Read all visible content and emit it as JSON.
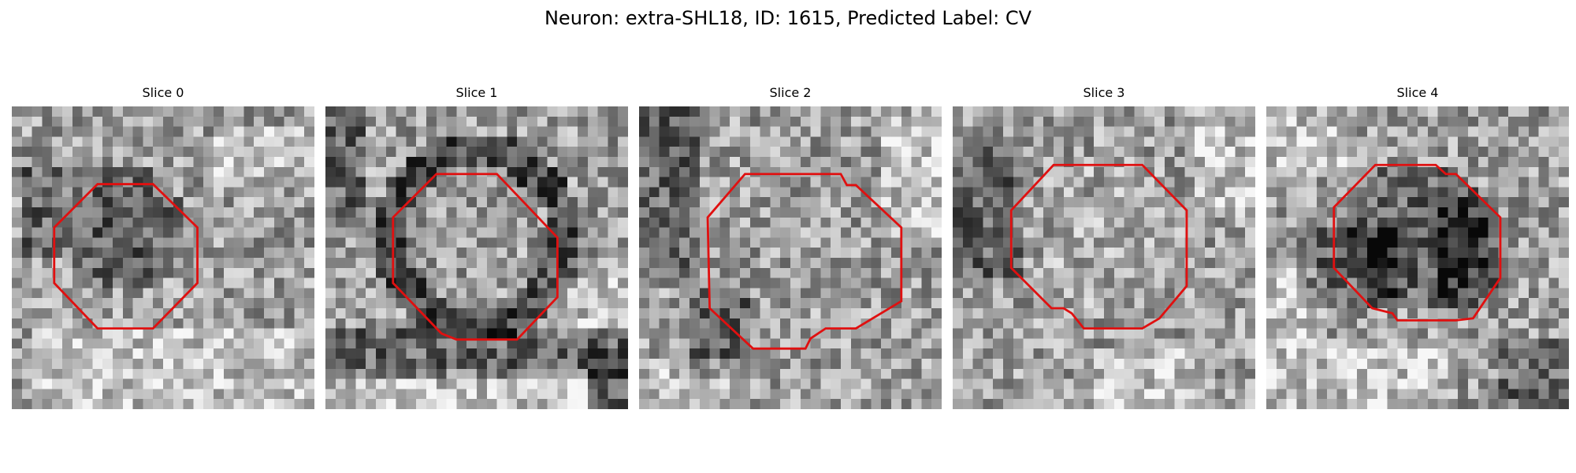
{
  "figure": {
    "title": "Neuron: extra-SHL18, ID: 1615, Predicted Label: CV",
    "grid_size": 30,
    "outline_color": "#e01010",
    "slices": [
      {
        "label": "Slice 0",
        "seed": 11,
        "center": [
          11,
          12
        ],
        "radius": 7.5,
        "ring": "dark-interior",
        "darken": [
          [
            1,
            6,
            4,
            14
          ],
          [
            0,
            18,
            4,
            6
          ]
        ],
        "lighten": [
          [
            2,
            22,
            28,
            29
          ],
          [
            20,
            2,
            29,
            6
          ]
        ],
        "outline": [
          [
            8.5,
            7.7
          ],
          [
            14,
            7.7
          ],
          [
            18.4,
            12
          ],
          [
            18.4,
            17.5
          ],
          [
            14,
            22
          ],
          [
            8.5,
            22
          ],
          [
            4.2,
            17.5
          ],
          [
            4.2,
            12
          ]
        ]
      },
      {
        "label": "Slice 1",
        "seed": 23,
        "center": [
          15,
          13
        ],
        "radius": 8.5,
        "ring": "dark-ring",
        "darken": [
          [
            0,
            22,
            29,
            26
          ],
          [
            0,
            0,
            3,
            10
          ],
          [
            26,
            24,
            29,
            29
          ]
        ],
        "lighten": [
          [
            0,
            26,
            25,
            29
          ],
          [
            22,
            16,
            29,
            22
          ]
        ],
        "outline": [
          [
            11,
            6.7
          ],
          [
            17,
            6.7
          ],
          [
            23,
            13
          ],
          [
            23,
            18.9
          ],
          [
            19,
            23.1
          ],
          [
            13,
            23.1
          ],
          [
            11.5,
            22.5
          ],
          [
            6.7,
            17.5
          ],
          [
            6.7,
            11
          ]
        ]
      },
      {
        "label": "Slice 2",
        "seed": 37,
        "center": [
          15,
          15
        ],
        "radius": 9,
        "ring": "neutral",
        "darken": [
          [
            0,
            0,
            5,
            16
          ],
          [
            5,
            18,
            10,
            26
          ]
        ],
        "lighten": [
          [
            24,
            1,
            29,
            12
          ],
          [
            0,
            25,
            10,
            29
          ]
        ],
        "outline": [
          [
            10.5,
            6.7
          ],
          [
            20,
            6.7
          ],
          [
            20.6,
            7.8
          ],
          [
            21.5,
            7.8
          ],
          [
            26,
            12
          ],
          [
            26,
            19.3
          ],
          [
            21.5,
            22
          ],
          [
            18.5,
            22
          ],
          [
            17,
            23
          ],
          [
            16.5,
            24
          ],
          [
            11.3,
            24
          ],
          [
            7,
            20
          ],
          [
            6.8,
            11
          ]
        ]
      },
      {
        "label": "Slice 3",
        "seed": 51,
        "center": [
          14,
          13
        ],
        "radius": 8.5,
        "ring": "light-interior",
        "darken": [
          [
            0,
            4,
            6,
            16
          ]
        ],
        "lighten": [
          [
            24,
            2,
            29,
            10
          ],
          [
            14,
            24,
            24,
            29
          ]
        ],
        "outline": [
          [
            10,
            5.8
          ],
          [
            18.8,
            5.8
          ],
          [
            23.2,
            10.3
          ],
          [
            23.2,
            17.8
          ],
          [
            20.5,
            21
          ],
          [
            18.8,
            22
          ],
          [
            13,
            22
          ],
          [
            11.8,
            20.5
          ],
          [
            11,
            20
          ],
          [
            9.8,
            20
          ],
          [
            5.8,
            16
          ],
          [
            5.8,
            10.3
          ]
        ]
      },
      {
        "label": "Slice 4",
        "seed": 67,
        "center": [
          15,
          13
        ],
        "radius": 8.5,
        "ring": "dark-interior",
        "darken": [
          [
            3,
            12,
            12,
            19
          ],
          [
            17,
            9,
            22,
            19
          ],
          [
            23,
            23,
            29,
            29
          ]
        ],
        "lighten": [
          [
            0,
            15,
            4,
            29
          ],
          [
            4,
            24,
            18,
            29
          ],
          [
            0,
            0,
            8,
            6
          ]
        ],
        "outline": [
          [
            10.8,
            5.8
          ],
          [
            16.8,
            5.8
          ],
          [
            17.8,
            6.7
          ],
          [
            18.8,
            6.7
          ],
          [
            23.2,
            11
          ],
          [
            23.2,
            17
          ],
          [
            20.5,
            21
          ],
          [
            18.8,
            21.2
          ],
          [
            13,
            21.2
          ],
          [
            12.5,
            20.5
          ],
          [
            10.5,
            20
          ],
          [
            6.7,
            16
          ],
          [
            6.7,
            10
          ]
        ]
      }
    ]
  }
}
